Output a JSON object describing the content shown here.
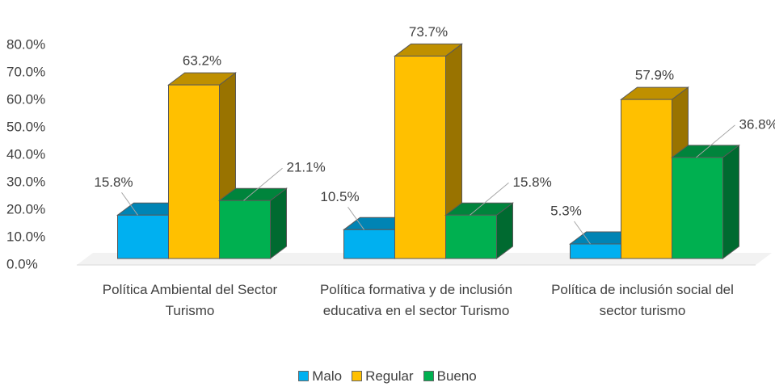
{
  "chart_data": {
    "type": "bar3d",
    "categories": [
      "Política Ambiental del Sector Turismo",
      "Política formativa y de inclusión educativa en el sector Turismo",
      "Política de inclusión social del sector turismo"
    ],
    "series": [
      {
        "name": "Malo",
        "color": "#00b0f0",
        "values": [
          15.8,
          10.5,
          5.3
        ],
        "value_labels": [
          "15.8%",
          "10.5%",
          "5.3%"
        ]
      },
      {
        "name": "Regular",
        "color": "#ffc000",
        "values": [
          63.2,
          73.7,
          57.9
        ],
        "value_labels": [
          "63.2%",
          "73.7%",
          "57.9%"
        ]
      },
      {
        "name": "Bueno",
        "color": "#00b050",
        "values": [
          21.1,
          15.8,
          36.8
        ],
        "value_labels": [
          "21.1%",
          "15.8%",
          "36.8%"
        ]
      }
    ],
    "ylim": [
      0,
      80
    ],
    "yticks": [
      {
        "value": 0,
        "label": "0.0%"
      },
      {
        "value": 10,
        "label": "10.0%"
      },
      {
        "value": 20,
        "label": "20.0%"
      },
      {
        "value": 30,
        "label": "30.0%"
      },
      {
        "value": 40,
        "label": "40.0%"
      },
      {
        "value": 50,
        "label": "50.0%"
      },
      {
        "value": 60,
        "label": "60.0%"
      },
      {
        "value": 70,
        "label": "70.0%"
      },
      {
        "value": 80,
        "label": "80.0%"
      }
    ],
    "legend": "bottom"
  }
}
